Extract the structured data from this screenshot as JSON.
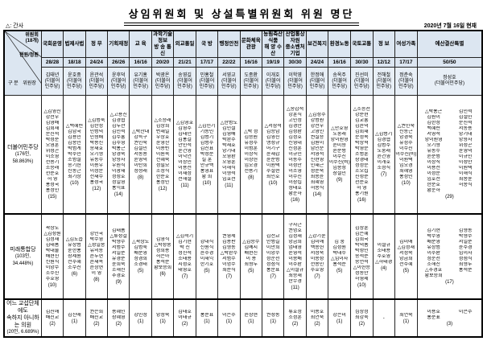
{
  "title": "상임위원회 및 상설특별위원회 위원 명단",
  "note": "△: 간사",
  "as_of": "2020년 7월 16일 현재",
  "corner": {
    "committee": "위원회",
    "committee_count": "(18개)",
    "seats": "현원/정원",
    "gubun": "구 분",
    "chair": "위원장"
  },
  "committees": [
    {
      "name": "국회운영",
      "seats": "28/28",
      "chair": "김태년",
      "chair_party": "(더불어\n민주당)"
    },
    {
      "name": "법제사법",
      "seats": "18/18",
      "chair": "윤호중",
      "chair_party": "(더불어\n민주당)"
    },
    {
      "name": "정  무",
      "seats": "24/24",
      "chair": "윤관석",
      "chair_party": "(더불어\n민주당)"
    },
    {
      "name": "기획재정",
      "seats": "26/26",
      "chair": "윤후덕",
      "chair_party": "(더불어\n민주당)"
    },
    {
      "name": "교  육",
      "seats": "16/16",
      "chair": "유기홍",
      "chair_party": "(더불어\n민주당)"
    },
    {
      "name": "과학기술정보\n방 송 통 신",
      "seats": "20/20",
      "chair": "박광온",
      "chair_party": "(더불어\n민주당)"
    },
    {
      "name": "외교통일",
      "seats": "21/21",
      "chair": "송영길",
      "chair_party": "(더불어\n민주당)"
    },
    {
      "name": "국  방",
      "seats": "17/17",
      "chair": "민홍철",
      "chair_party": "(더불어\n민주당)"
    },
    {
      "name": "행정안전",
      "seats": "22/22",
      "chair": "서영교",
      "chair_party": "(더불어\n민주당)"
    },
    {
      "name": "문화체육관광",
      "seats": "16/16",
      "chair": "도종환",
      "chair_party": "(더불어\n민주당)"
    },
    {
      "name": "농림축산식품\n해 양 수 산",
      "seats": "19/19",
      "chair": "이개호",
      "chair_party": "(더불어\n민주당)"
    },
    {
      "name": "산업통상자원\n중소벤처기업",
      "seats": "30/30",
      "chair": "이학영",
      "chair_party": "(더불어\n민주당)"
    },
    {
      "name": "보건복지",
      "seats": "24/24",
      "chair": "한정애",
      "chair_party": "(더불어\n민주당)"
    },
    {
      "name": "환경노동",
      "seats": "16/16",
      "chair": "송옥주",
      "chair_party": "(더불어\n민주당)"
    },
    {
      "name": "국토교통",
      "seats": "30/30",
      "chair": "진선미",
      "chair_party": "(더불어\n민주당)"
    },
    {
      "name": "정  보",
      "seats": "12/12",
      "chair": "전해철",
      "chair_party": "(더불어\n민주당)"
    },
    {
      "name": "여성가족",
      "seats": "17/17",
      "chair": "정춘숙",
      "chair_party": "(더불어\n민주당)"
    },
    {
      "name": "예산결산특별",
      "seats": "50/50",
      "chair": "정성호",
      "chair_party": "(더불어민주당)"
    }
  ],
  "parties": [
    {
      "label": "더불어민주당",
      "sub": "(176인, 58.863%)",
      "cells": [
        {
          "names": [
            "△김영진",
            "강선우",
            "김영배",
            "김회재",
            "문진석",
            "박성준",
            "오영훈",
            "위성곤",
            "이소영",
            "전용기",
            "조승래",
            "천준호",
            "허  영",
            "홍성국",
            "홍정민"
          ],
          "count": "(15)"
        },
        {
          "names": [
            "△백혜련",
            "김남국",
            "김용민",
            "김종민",
            "박범계",
            "박주민",
            "소병철",
            "송기헌",
            "신동근",
            "최기상"
          ],
          "count": "(10)"
        },
        {
          "names": [
            "△김병욱",
            "김한정",
            "민병덕",
            "민형배",
            "박용진",
            "송재호",
            "오기형",
            "유동수",
            "이용우",
            "이정문",
            "전재수",
            "홍성국"
          ],
          "count": "(12)"
        },
        {
          "names": [
            "△고용진",
            "김경협",
            "김두관",
            "김민석",
            "김수흥",
            "김주영",
            "박홍근",
            "양경숙",
            "양향자",
            "우원식",
            "이광재",
            "정성호",
            "정일영",
            "홍익표"
          ],
          "count": "(14)"
        },
        {
          "names": [
            "△박찬대",
            "강득구",
            "권인숙",
            "김철민",
            "서동용",
            "윤영덕",
            "이탄희",
            "정청래"
          ],
          "count": "(8)"
        },
        {
          "names": [
            "△조승래",
            "김상희",
            "변재일",
            "우상호",
            "윤영찬",
            "이용빈",
            "이원욱",
            "전혜숙",
            "정필모",
            "조정식",
            "한준호",
            "홍정민"
          ],
          "count": "(12)"
        },
        {
          "names": [
            "△김영호",
            "김영주",
            "김태년",
            "김홍걸",
            "안민석",
            "윤건영",
            "이낙연",
            "이상민",
            "이용선",
            "이재정",
            "전해철"
          ],
          "count": "(11)"
        },
        {
          "names": [
            "△김민기",
            "기동민",
            "김병기",
            "김병주",
            "김진표",
            "박성준",
            "설  훈",
            "안규백",
            "홍영표",
            "황  희"
          ],
          "count": "(10)"
        },
        {
          "names": [
            "△한병도",
            "김민철",
            "김영배",
            "박완주",
            "박재호",
            "양기대",
            "오영환",
            "오영훈",
            "이해식",
            "이형석",
            "임호선"
          ],
          "count": "(11)"
        },
        {
          "names": [
            "△박  정",
            "김승원",
            "유정주",
            "이병훈",
            "이상직",
            "이상헌",
            "임오경",
            "전용기"
          ],
          "count": "(8)"
        },
        {
          "names": [
            "△서삼석",
            "김승남",
            "김영진",
            "맹성규",
            "어기구",
            "윤재갑",
            "윤준병",
            "이원택",
            "주철현",
            "최인호"
          ],
          "count": "(10)"
        },
        {
          "names": [
            "△송갑석",
            "강훈식",
            "고민정",
            "김경만",
            "김성환",
            "김정호",
            "신영대",
            "신정훈",
            "이규민",
            "이동주",
            "이성만",
            "이소영",
            "이수진",
            "이장섭",
            "정태호",
            "황운하"
          ],
          "count": "(16)"
        },
        {
          "names": [
            "△김성주",
            "강병원",
            "강선우",
            "고영인",
            "권칠승",
            "김원이",
            "남인순",
            "서영석",
            "신현영",
            "인재근",
            "정춘숙",
            "최종윤",
            "최혜영",
            "허종식"
          ],
          "count": "(14)"
        },
        {
          "names": [
            "△안호영",
            "노웅래",
            "양이원영",
            "윤미향",
            "윤준병",
            "이수진",
            "이수진(비)",
            "임종성",
            "장철민"
          ],
          "count": "(9)"
        },
        {
          "names": [
            "△조응천",
            "강준현",
            "김교흥",
            "김윤덕",
            "김회재",
            "문정복",
            "박상혁",
            "박영순",
            "소병훈",
            "장경태",
            "정정순",
            "조오섭",
            "진성준",
            "천준호",
            "허  영",
            "홍기원"
          ],
          "count": "(16)"
        },
        {
          "names": [
            "△김병기",
            "김경협",
            "김병주",
            "노웅래",
            "윤건영",
            "이개호",
            "조정식"
          ],
          "count": "(7)"
        },
        {
          "names": [
            "△권인숙",
            "신동근",
            "양경숙",
            "유정주",
            "이수진",
            "이수진(비)",
            "이원택",
            "임오경",
            "최혜영",
            "홍정민"
          ],
          "count": "(10)"
        },
        {
          "names": [
            "△박홍근",
            "김민석",
            "김원이",
            "김철민",
            "김한정",
            "문진석",
            "백혜련",
            "서동용",
            "서영석",
            "양기대",
            "양이원영",
            "양향자",
            "오기형",
            "위성곤",
            "유동수",
            "윤영덕",
            "윤준병",
            "이규민",
            "이상직",
            "이성만",
            "이용선",
            "이원택",
            "이정문",
            "이해식",
            "임호선",
            "최종윤",
            "한준호",
            "허종식",
            "황운하"
          ],
          "count": "(29)"
        }
      ]
    },
    {
      "label": "미래통합당",
      "sub": "(103인, 34.448%)",
      "cells": [
        {
          "names": [
            "곽상도",
            "△김성원",
            "김정재",
            "김태흠",
            "박대출",
            "배현진",
            "신원식",
            "이양수",
            "조수진",
            "주호영"
          ],
          "count": "(10)"
        },
        {
          "names": [
            "△김도읍",
            "유상범",
            "윤한홍",
            "장제원",
            "전주혜",
            "조수진"
          ],
          "count": "(6)"
        },
        {
          "names": [
            "강민국",
            "박수영",
            "△성일종",
            "유의동",
            "윤두현",
            "윤재옥",
            "윤창현",
            "이  영"
          ],
          "count": "(8)"
        },
        {
          "names": [
            "김태흠",
            "△류성걸",
            "박형수",
            "서병수",
            "서일준",
            "유경준",
            "윤희숙",
            "조해진",
            "추경호"
          ],
          "count": "(9)"
        },
        {
          "names": [
            "△곽상도",
            "김병욱",
            "배준영",
            "정경희",
            "조경태"
          ],
          "count": "(5)"
        },
        {
          "names": [
            "김영식",
            "△박성중",
            "정희용",
            "허은아",
            "홍석준",
            "황보승희"
          ],
          "count": "(6)"
        },
        {
          "names": [
            "△김석기",
            "김기현",
            "박  진",
            "정진석",
            "조태용",
            "지성호",
            "태영호"
          ],
          "count": "(7)"
        },
        {
          "names": [
            "강대식",
            "신원식",
            "윤주경",
            "이채익",
            "한기호"
          ],
          "count": "(5)"
        },
        {
          "names": [
            "권영세",
            "김용판",
            "김형동",
            "△박완수",
            "서범수",
            "이명수",
            "최춘식"
          ],
          "count": "(7)"
        },
        {
          "names": [
            "△김승수",
            "김예지",
            "배현진",
            "이  용",
            "최형두"
          ],
          "count": "(5)"
        },
        {
          "names": [
            "김선교",
            "안병길",
            "이만희",
            "이양수",
            "정운천",
            "정점식",
            "홍문표"
          ],
          "count": "(7)"
        },
        {
          "names": [
            "구자근",
            "권명호",
            "김정재",
            "양금희",
            "엄태영",
            "윤영석",
            "이종배",
            "이주환",
            "△이철규",
            "최승재",
            "한무경"
          ],
          "count": "(11)"
        },
        {
          "names": [
            "△강기윤",
            "김미애",
            "백종헌",
            "서정숙",
            "이종성",
            "전봉민",
            "주호영"
          ],
          "count": "(7)"
        },
        {
          "names": [
            "김  웅",
            "김성원",
            "박대수",
            "△임이자",
            "홍석준"
          ],
          "count": "(5)"
        },
        {
          "names": [
            "김상훈",
            "김은혜",
            "김희국",
            "박덕흠",
            "박성민",
            "송석준",
            "송언석",
            "△이헌승",
            "정동만",
            "하영제"
          ],
          "count": "(10)"
        },
        {
          "names": [
            "이철규",
            "조태용",
            "주호영",
            "△하태경"
          ],
          "count": "(4)"
        },
        {
          "names": [
            "김미애",
            "△김정재",
            "서정숙",
            "양금희",
            "전주혜"
          ],
          "count": "(5)"
        },
        {
          "names": [
            "김기현",
            "김형동",
            "박수영",
            "박형수",
            "배준영",
            "서일준",
            "유상범",
            "윤주경",
            "이주환",
            "임이자",
            "정운천",
            "정점식",
            "조해진",
            "최형두",
            "△추경호",
            "홍석준",
            "황보승희"
          ],
          "count": "(17)"
        }
      ]
    },
    {
      "label": "어느 교섭단체에도\n속하지 아니하는 의원",
      "sub": "(20인, 6.689%)",
      "cells": [
        {
          "names": [
            "김진애",
            "배진교"
          ],
          "count": "(2)"
        },
        {
          "names": [
            "김진애"
          ],
          "count": "(1)"
        },
        {
          "names": [
            "권은희",
            "배진교"
          ],
          "count": "(2)"
        },
        {
          "names": [
            "용혜인",
            "장혜영"
          ],
          "count": "(2)"
        },
        {
          "names": [
            "강민정"
          ],
          "count": "(1)"
        },
        {
          "names": [
            "양정숙"
          ],
          "count": "(1)"
        },
        {
          "names": [
            "김태호",
            "이태규"
          ],
          "count": "(2)"
        },
        {
          "names": [
            "홍준표"
          ],
          "count": "(1)"
        },
        {
          "names": [
            "이은주"
          ],
          "count": "(1)"
        },
        {
          "names": [
            "윤상현"
          ],
          "count": "(1)"
        },
        {
          "names": [
            "권성동"
          ],
          "count": "(1)"
        },
        {
          "names": [
            "류호정",
            "조정훈"
          ],
          "count": "(2)"
        },
        {
          "names": [
            "이용호",
            "최연숙"
          ],
          "count": "(2)"
        },
        {
          "names": [
            "강은미"
          ],
          "count": "(1)"
        },
        {
          "names": [
            "심상정",
            "최강욱"
          ],
          "count": "(2)"
        },
        {
          "names": [],
          "count": "-"
        },
        {
          "names": [
            "최연숙"
          ],
          "count": "(1)"
        },
        {
          "names": [
            "이용호",
            "이은주",
            "홍준표"
          ],
          "count": "(3)"
        }
      ]
    }
  ],
  "layout_hint": {
    "band_heights": [
      146,
      104,
      42
    ]
  }
}
